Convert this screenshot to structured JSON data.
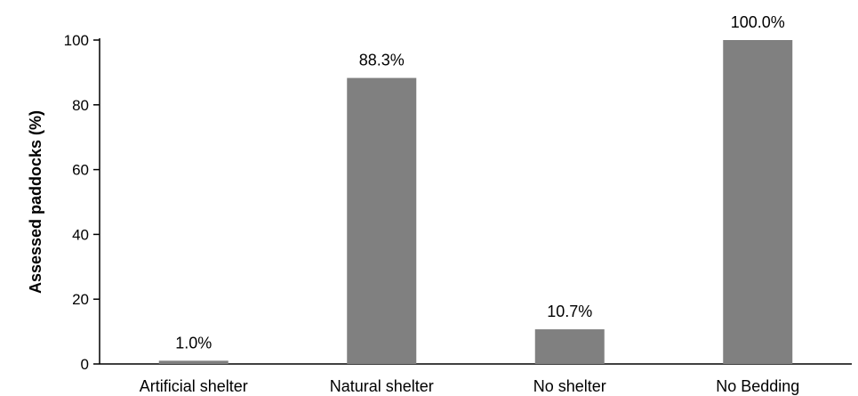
{
  "chart_data": {
    "type": "bar",
    "categories": [
      "Artificial shelter",
      "Natural shelter",
      "No shelter",
      "No Bedding"
    ],
    "values": [
      1.0,
      88.3,
      10.7,
      100.0
    ],
    "value_labels": [
      "1.0%",
      "88.3%",
      "10.7%",
      "100.0%"
    ],
    "title": "",
    "xlabel": "",
    "ylabel": "Assessed paddocks (%)",
    "ylim": [
      0,
      100
    ],
    "yticks": [
      0,
      20,
      40,
      60,
      80,
      100
    ],
    "ytick_labels": [
      "0",
      "20",
      "40",
      "60",
      "80",
      "100"
    ],
    "grid": false,
    "legend": "none",
    "bar_color": "#808080"
  }
}
